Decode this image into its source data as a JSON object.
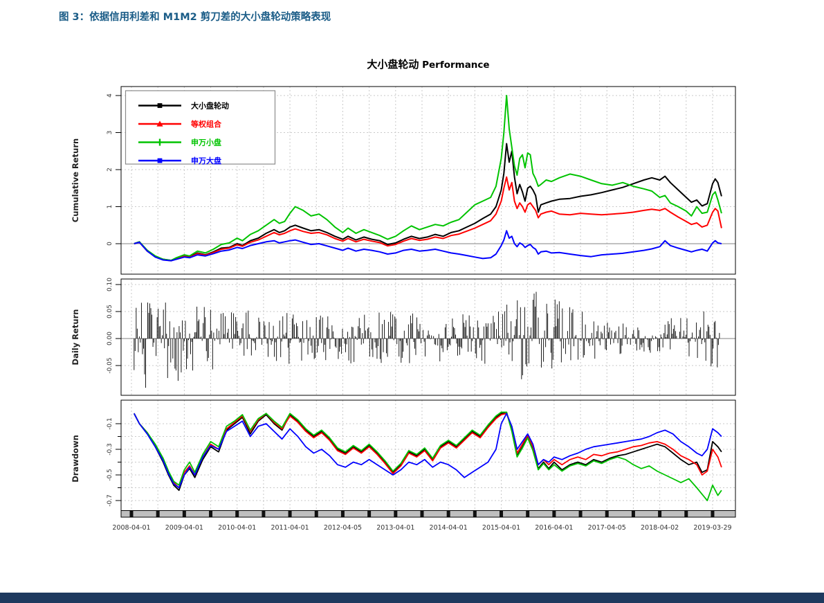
{
  "page": {
    "caption": "图 3：依据信用利差和 M1M2 剪刀差的大小盘轮动策略表现",
    "caption_color": "#1A5C87",
    "footer_bar_color": "#1E3A5F"
  },
  "chart_data": {
    "type": "line",
    "title_cn": "大小盘轮动",
    "title_en": "Performance",
    "x_unit": "years since 2008-04-01",
    "x_tick_values": [
      0,
      1,
      2,
      3,
      4,
      5,
      6,
      7,
      8,
      9,
      10,
      11
    ],
    "x_tick_labels": [
      "2008-04-01",
      "2009-04-01",
      "2010-04-01",
      "2011-04-01",
      "2012-04-05",
      "2013-04-01",
      "2014-04-01",
      "2015-04-01",
      "2016-04-01",
      "2017-04-05",
      "2018-04-02",
      "2019-03-29"
    ],
    "grid": {
      "on": true,
      "vertical_step_years": 0.5,
      "dash_color": "#c9c9c9",
      "zero_line_color": "#9a9a9a"
    },
    "legend": {
      "position": "top-left",
      "entries": [
        "大小盘轮动",
        "等权组合",
        "申万小盘",
        "申万大盘"
      ]
    },
    "panels": [
      {
        "id": "cum",
        "ylabel": "Cumulative Return",
        "ylim": [
          -0.8,
          4.25
        ],
        "yticks": [
          0,
          1,
          2,
          3,
          4
        ],
        "ytick_labels": [
          "0",
          "1",
          "2",
          "3",
          "4"
        ],
        "zero_line": true
      },
      {
        "id": "dr",
        "ylabel": "Daily Return",
        "ylim": [
          -0.11,
          0.11
        ],
        "yticks": [
          0.1,
          0.05,
          0.0,
          -0.05
        ],
        "ytick_labels": [
          "0.10",
          "0.05",
          "0.00",
          "-0.05"
        ],
        "zero_line": true,
        "noise_seed": 987654321,
        "n_spikes": 560,
        "note": "dense daily return spikes around zero; amplitude envelope below",
        "envelope_t": [
          0.05,
          0.3,
          0.6,
          0.9,
          1.2,
          1.6,
          2,
          2.5,
          3,
          3.5,
          4,
          4.5,
          5,
          5.5,
          6,
          6.5,
          6.9,
          7.2,
          7.5,
          7.8,
          8.1,
          8.4,
          8.8,
          9.2,
          9.6,
          10,
          10.4,
          10.8,
          11.17
        ],
        "envelope_amp": [
          0.08,
          0.095,
          0.085,
          0.09,
          0.07,
          0.06,
          0.055,
          0.05,
          0.05,
          0.048,
          0.05,
          0.052,
          0.05,
          0.045,
          0.042,
          0.048,
          0.05,
          0.075,
          0.09,
          0.085,
          0.07,
          0.055,
          0.04,
          0.03,
          0.025,
          0.03,
          0.045,
          0.055,
          0.065
        ]
      },
      {
        "id": "dd",
        "ylabel": "Drawdown",
        "ylim": [
          -0.83,
          0.02
        ],
        "yticks": [
          -0.1,
          -0.3,
          -0.5,
          -0.7
        ],
        "ytick_labels": [
          "-0.1",
          "-0.3",
          "-0.5",
          "-0.7"
        ],
        "yticks_minor": [
          -0.2,
          -0.4,
          -0.6
        ],
        "zero_line": false
      }
    ],
    "t_cum": [
      0.05,
      0.15,
      0.3,
      0.45,
      0.6,
      0.75,
      0.85,
      1,
      1.1,
      1.25,
      1.4,
      1.55,
      1.7,
      1.85,
      2,
      2.1,
      2.25,
      2.4,
      2.55,
      2.7,
      2.8,
      2.9,
      3,
      3.1,
      3.25,
      3.4,
      3.55,
      3.7,
      3.85,
      4,
      4.1,
      4.25,
      4.4,
      4.55,
      4.7,
      4.85,
      5,
      5.15,
      5.3,
      5.45,
      5.6,
      5.75,
      5.9,
      6.05,
      6.2,
      6.35,
      6.5,
      6.65,
      6.8,
      6.9,
      7,
      7.05,
      7.1,
      7.15,
      7.2,
      7.25,
      7.3,
      7.35,
      7.4,
      7.45,
      7.5,
      7.55,
      7.6,
      7.65,
      7.7,
      7.75,
      7.85,
      7.95,
      8.1,
      8.3,
      8.5,
      8.7,
      8.9,
      9.1,
      9.3,
      9.5,
      9.7,
      9.85,
      10,
      10.1,
      10.2,
      10.35,
      10.5,
      10.6,
      10.7,
      10.8,
      10.9,
      11,
      11.05,
      11.1,
      11.17
    ],
    "t_dd": [
      0.05,
      0.15,
      0.3,
      0.45,
      0.6,
      0.7,
      0.8,
      0.9,
      1,
      1.1,
      1.2,
      1.35,
      1.5,
      1.65,
      1.8,
      1.95,
      2.1,
      2.25,
      2.4,
      2.55,
      2.7,
      2.85,
      3,
      3.15,
      3.3,
      3.45,
      3.6,
      3.75,
      3.9,
      4.05,
      4.2,
      4.35,
      4.5,
      4.65,
      4.8,
      4.95,
      5.1,
      5.25,
      5.4,
      5.55,
      5.7,
      5.85,
      6,
      6.15,
      6.3,
      6.45,
      6.6,
      6.75,
      6.9,
      7,
      7.1,
      7.2,
      7.3,
      7.4,
      7.5,
      7.6,
      7.7,
      7.8,
      7.9,
      8,
      8.15,
      8.3,
      8.45,
      8.6,
      8.75,
      8.9,
      9.05,
      9.2,
      9.35,
      9.5,
      9.65,
      9.8,
      9.95,
      10.1,
      10.25,
      10.4,
      10.55,
      10.7,
      10.8,
      10.9,
      11,
      11.1,
      11.17
    ],
    "series": [
      {
        "name": "大小盘轮动",
        "color": "#000000",
        "marker": "square",
        "cum_v": [
          0,
          0.05,
          -0.2,
          -0.35,
          -0.42,
          -0.45,
          -0.4,
          -0.33,
          -0.36,
          -0.25,
          -0.3,
          -0.22,
          -0.12,
          -0.1,
          0,
          -0.05,
          0.08,
          0.15,
          0.28,
          0.38,
          0.3,
          0.35,
          0.45,
          0.5,
          0.42,
          0.35,
          0.38,
          0.3,
          0.2,
          0.12,
          0.2,
          0.1,
          0.18,
          0.12,
          0.08,
          -0.02,
          0.02,
          0.12,
          0.2,
          0.14,
          0.18,
          0.25,
          0.2,
          0.3,
          0.35,
          0.45,
          0.55,
          0.68,
          0.8,
          1,
          1.45,
          1.9,
          2.7,
          2.2,
          2.5,
          1.8,
          1.35,
          1.6,
          1.4,
          1.15,
          1.5,
          1.55,
          1.45,
          1.3,
          0.85,
          1.05,
          1.1,
          1.15,
          1.2,
          1.22,
          1.28,
          1.32,
          1.38,
          1.45,
          1.52,
          1.62,
          1.72,
          1.78,
          1.72,
          1.82,
          1.65,
          1.45,
          1.25,
          1.12,
          1.18,
          1.02,
          1.08,
          1.62,
          1.75,
          1.65,
          1.28
        ],
        "dd_v": [
          -0.02,
          -0.1,
          -0.18,
          -0.28,
          -0.4,
          -0.5,
          -0.58,
          -0.62,
          -0.5,
          -0.45,
          -0.52,
          -0.38,
          -0.28,
          -0.32,
          -0.15,
          -0.1,
          -0.05,
          -0.18,
          -0.08,
          -0.03,
          -0.1,
          -0.15,
          -0.03,
          -0.08,
          -0.15,
          -0.2,
          -0.16,
          -0.22,
          -0.3,
          -0.33,
          -0.28,
          -0.32,
          -0.27,
          -0.33,
          -0.4,
          -0.48,
          -0.42,
          -0.32,
          -0.35,
          -0.3,
          -0.38,
          -0.28,
          -0.24,
          -0.28,
          -0.22,
          -0.16,
          -0.2,
          -0.12,
          -0.05,
          -0.02,
          -0.01,
          -0.15,
          -0.35,
          -0.28,
          -0.2,
          -0.3,
          -0.45,
          -0.4,
          -0.45,
          -0.4,
          -0.46,
          -0.42,
          -0.4,
          -0.42,
          -0.38,
          -0.4,
          -0.37,
          -0.35,
          -0.34,
          -0.32,
          -0.3,
          -0.28,
          -0.26,
          -0.28,
          -0.33,
          -0.38,
          -0.42,
          -0.4,
          -0.48,
          -0.46,
          -0.24,
          -0.28,
          -0.32
        ]
      },
      {
        "name": "等权组合",
        "color": "#FF0000",
        "marker": "triangle",
        "cum_v": [
          0,
          0.04,
          -0.2,
          -0.35,
          -0.43,
          -0.46,
          -0.41,
          -0.34,
          -0.37,
          -0.27,
          -0.31,
          -0.24,
          -0.15,
          -0.12,
          -0.03,
          -0.07,
          0.04,
          0.1,
          0.2,
          0.3,
          0.24,
          0.28,
          0.35,
          0.4,
          0.33,
          0.28,
          0.3,
          0.24,
          0.14,
          0.07,
          0.14,
          0.05,
          0.12,
          0.07,
          0.03,
          -0.06,
          -0.02,
          0.07,
          0.14,
          0.09,
          0.12,
          0.18,
          0.14,
          0.22,
          0.26,
          0.34,
          0.42,
          0.52,
          0.62,
          0.8,
          1.15,
          1.5,
          1.8,
          1.45,
          1.65,
          1.15,
          0.95,
          1.1,
          1,
          0.85,
          1.05,
          1.1,
          1,
          0.9,
          0.7,
          0.8,
          0.85,
          0.88,
          0.8,
          0.78,
          0.82,
          0.8,
          0.78,
          0.8,
          0.82,
          0.85,
          0.9,
          0.93,
          0.9,
          0.95,
          0.85,
          0.72,
          0.6,
          0.52,
          0.56,
          0.45,
          0.5,
          0.85,
          0.95,
          0.88,
          0.42
        ],
        "dd_v": [
          -0.02,
          -0.1,
          -0.17,
          -0.27,
          -0.38,
          -0.48,
          -0.56,
          -0.6,
          -0.48,
          -0.43,
          -0.5,
          -0.36,
          -0.26,
          -0.3,
          -0.14,
          -0.09,
          -0.04,
          -0.16,
          -0.07,
          -0.02,
          -0.09,
          -0.14,
          -0.04,
          -0.09,
          -0.16,
          -0.21,
          -0.17,
          -0.23,
          -0.31,
          -0.34,
          -0.29,
          -0.33,
          -0.28,
          -0.34,
          -0.41,
          -0.49,
          -0.43,
          -0.33,
          -0.36,
          -0.31,
          -0.39,
          -0.29,
          -0.25,
          -0.29,
          -0.23,
          -0.17,
          -0.21,
          -0.13,
          -0.06,
          -0.03,
          -0.02,
          -0.14,
          -0.33,
          -0.26,
          -0.19,
          -0.28,
          -0.42,
          -0.38,
          -0.42,
          -0.38,
          -0.42,
          -0.38,
          -0.36,
          -0.38,
          -0.34,
          -0.35,
          -0.33,
          -0.32,
          -0.3,
          -0.28,
          -0.27,
          -0.25,
          -0.24,
          -0.26,
          -0.3,
          -0.35,
          -0.38,
          -0.42,
          -0.5,
          -0.47,
          -0.3,
          -0.36,
          -0.44
        ]
      },
      {
        "name": "申万小盘",
        "color": "#00C300",
        "marker": "plus",
        "cum_v": [
          0,
          0.05,
          -0.18,
          -0.33,
          -0.42,
          -0.45,
          -0.38,
          -0.3,
          -0.33,
          -0.2,
          -0.25,
          -0.15,
          -0.02,
          0.02,
          0.15,
          0.08,
          0.25,
          0.35,
          0.5,
          0.65,
          0.55,
          0.6,
          0.82,
          1,
          0.9,
          0.75,
          0.8,
          0.65,
          0.45,
          0.3,
          0.42,
          0.28,
          0.38,
          0.3,
          0.22,
          0.12,
          0.2,
          0.35,
          0.48,
          0.38,
          0.45,
          0.52,
          0.48,
          0.58,
          0.65,
          0.85,
          1.05,
          1.15,
          1.25,
          1.55,
          2.3,
          3,
          4,
          3.1,
          2.6,
          2.1,
          1.85,
          2.3,
          2.4,
          2.05,
          2.45,
          2.4,
          1.9,
          1.75,
          1.55,
          1.6,
          1.72,
          1.68,
          1.78,
          1.88,
          1.82,
          1.72,
          1.62,
          1.58,
          1.65,
          1.55,
          1.48,
          1.42,
          1.25,
          1.3,
          1.1,
          1,
          0.88,
          0.75,
          1,
          0.82,
          0.85,
          1.32,
          1.4,
          1.18,
          0.82
        ],
        "dd_v": [
          -0.02,
          -0.1,
          -0.17,
          -0.26,
          -0.37,
          -0.47,
          -0.55,
          -0.58,
          -0.46,
          -0.4,
          -0.48,
          -0.34,
          -0.24,
          -0.28,
          -0.12,
          -0.08,
          -0.03,
          -0.15,
          -0.06,
          -0.02,
          -0.08,
          -0.13,
          -0.02,
          -0.07,
          -0.14,
          -0.19,
          -0.15,
          -0.21,
          -0.29,
          -0.32,
          -0.27,
          -0.31,
          -0.26,
          -0.32,
          -0.39,
          -0.47,
          -0.41,
          -0.31,
          -0.34,
          -0.29,
          -0.37,
          -0.27,
          -0.23,
          -0.27,
          -0.21,
          -0.15,
          -0.19,
          -0.11,
          -0.04,
          -0.01,
          -0.01,
          -0.16,
          -0.36,
          -0.29,
          -0.21,
          -0.31,
          -0.46,
          -0.41,
          -0.46,
          -0.42,
          -0.47,
          -0.43,
          -0.41,
          -0.43,
          -0.39,
          -0.41,
          -0.38,
          -0.36,
          -0.38,
          -0.42,
          -0.45,
          -0.43,
          -0.47,
          -0.5,
          -0.53,
          -0.56,
          -0.53,
          -0.6,
          -0.65,
          -0.7,
          -0.58,
          -0.66,
          -0.62
        ]
      },
      {
        "name": "申万大盘",
        "color": "#0000FF",
        "marker": "square",
        "cum_v": [
          0,
          0.04,
          -0.2,
          -0.36,
          -0.44,
          -0.46,
          -0.42,
          -0.36,
          -0.38,
          -0.3,
          -0.33,
          -0.27,
          -0.2,
          -0.17,
          -0.1,
          -0.13,
          -0.05,
          0,
          0.05,
          0.08,
          0.02,
          0.05,
          0.08,
          0.1,
          0.04,
          -0.02,
          0,
          -0.06,
          -0.12,
          -0.18,
          -0.12,
          -0.2,
          -0.15,
          -0.18,
          -0.22,
          -0.28,
          -0.25,
          -0.18,
          -0.15,
          -0.2,
          -0.18,
          -0.15,
          -0.2,
          -0.25,
          -0.28,
          -0.32,
          -0.36,
          -0.4,
          -0.38,
          -0.28,
          -0.05,
          0.1,
          0.35,
          0.15,
          0.2,
          0,
          -0.08,
          0.02,
          -0.02,
          -0.1,
          -0.05,
          -0.02,
          -0.1,
          -0.15,
          -0.28,
          -0.22,
          -0.2,
          -0.25,
          -0.24,
          -0.28,
          -0.32,
          -0.35,
          -0.3,
          -0.28,
          -0.26,
          -0.22,
          -0.18,
          -0.14,
          -0.08,
          0.08,
          -0.05,
          -0.12,
          -0.18,
          -0.22,
          -0.18,
          -0.15,
          -0.2,
          0.02,
          0.08,
          0.02,
          0
        ],
        "dd_v": [
          -0.02,
          -0.1,
          -0.18,
          -0.28,
          -0.39,
          -0.49,
          -0.57,
          -0.6,
          -0.5,
          -0.44,
          -0.5,
          -0.36,
          -0.27,
          -0.3,
          -0.16,
          -0.12,
          -0.08,
          -0.2,
          -0.12,
          -0.1,
          -0.16,
          -0.22,
          -0.14,
          -0.2,
          -0.28,
          -0.33,
          -0.3,
          -0.35,
          -0.42,
          -0.44,
          -0.4,
          -0.42,
          -0.38,
          -0.42,
          -0.46,
          -0.5,
          -0.46,
          -0.4,
          -0.42,
          -0.38,
          -0.44,
          -0.4,
          -0.42,
          -0.46,
          -0.52,
          -0.48,
          -0.44,
          -0.4,
          -0.3,
          -0.1,
          -0.02,
          -0.12,
          -0.3,
          -0.24,
          -0.18,
          -0.26,
          -0.42,
          -0.38,
          -0.4,
          -0.36,
          -0.38,
          -0.35,
          -0.33,
          -0.3,
          -0.28,
          -0.27,
          -0.26,
          -0.25,
          -0.24,
          -0.23,
          -0.22,
          -0.2,
          -0.17,
          -0.15,
          -0.18,
          -0.24,
          -0.28,
          -0.33,
          -0.35,
          -0.3,
          -0.14,
          -0.17,
          -0.2
        ]
      }
    ]
  }
}
